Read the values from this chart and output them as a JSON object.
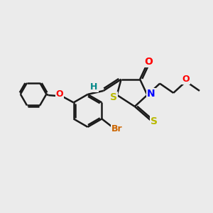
{
  "bg_color": "#ebebeb",
  "bond_color": "#1a1a1a",
  "bond_width": 1.8,
  "atom_colors": {
    "O": "#ff0000",
    "N": "#0000ff",
    "S": "#b8b800",
    "Br": "#cc6600",
    "H": "#008888"
  },
  "font_size": 9.5,
  "fig_size": [
    3.0,
    3.0
  ],
  "dpi": 100,
  "xlim": [
    0,
    10
  ],
  "ylim": [
    0,
    10
  ]
}
